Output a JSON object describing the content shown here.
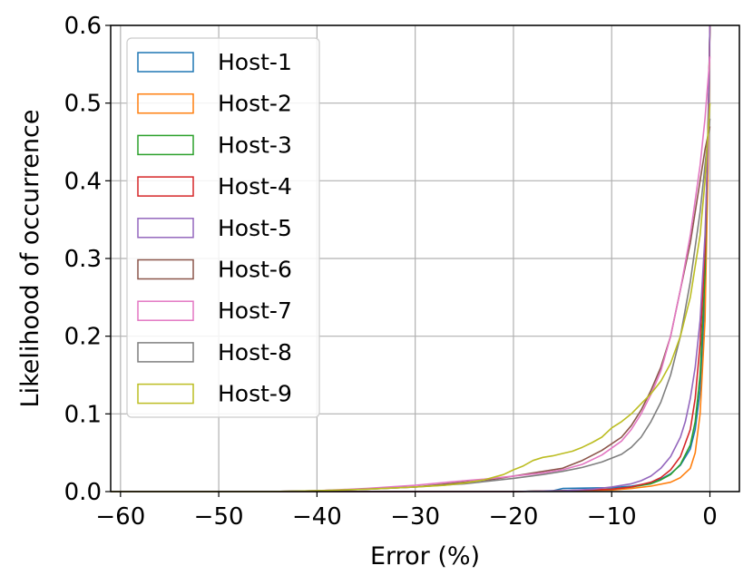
{
  "chart_data": {
    "type": "line",
    "title": "",
    "xlabel": "Error (%)",
    "ylabel": "Likelihood of occurrence",
    "xlim": [
      -61,
      3
    ],
    "ylim": [
      0,
      0.6
    ],
    "xticks": [
      -60,
      -50,
      -40,
      -30,
      -20,
      -10,
      0
    ],
    "xtick_labels": [
      "−60",
      "−50",
      "−40",
      "−30",
      "−20",
      "−10",
      "0"
    ],
    "yticks": [
      0.0,
      0.1,
      0.2,
      0.3,
      0.4,
      0.5,
      0.6
    ],
    "ytick_labels": [
      "0.0",
      "0.1",
      "0.2",
      "0.3",
      "0.4",
      "0.5",
      "0.6"
    ],
    "grid": true,
    "legend_position": "top-left",
    "series": [
      {
        "name": "Host-1",
        "color": "#1f77b4",
        "points": [
          [
            -61,
            0
          ],
          [
            -40,
            0
          ],
          [
            -30,
            0
          ],
          [
            -20,
            0
          ],
          [
            -16,
            0.001
          ],
          [
            -15,
            0.004
          ],
          [
            -10,
            0.005
          ],
          [
            -8,
            0.007
          ],
          [
            -6,
            0.011
          ],
          [
            -5,
            0.016
          ],
          [
            -4,
            0.023
          ],
          [
            -3,
            0.034
          ],
          [
            -2,
            0.055
          ],
          [
            -1.5,
            0.08
          ],
          [
            -1,
            0.13
          ],
          [
            -0.5,
            0.25
          ],
          [
            -0.2,
            0.45
          ],
          [
            0,
            0.6
          ]
        ]
      },
      {
        "name": "Host-2",
        "color": "#ff7f0e",
        "points": [
          [
            -61,
            0
          ],
          [
            -40,
            0
          ],
          [
            -30,
            0
          ],
          [
            -20,
            0
          ],
          [
            -15,
            0.001
          ],
          [
            -10,
            0.002
          ],
          [
            -8,
            0.004
          ],
          [
            -6,
            0.007
          ],
          [
            -4,
            0.012
          ],
          [
            -3,
            0.018
          ],
          [
            -2,
            0.03
          ],
          [
            -1.5,
            0.05
          ],
          [
            -1,
            0.1
          ],
          [
            -0.5,
            0.22
          ],
          [
            -0.2,
            0.42
          ],
          [
            0,
            0.6
          ]
        ]
      },
      {
        "name": "Host-3",
        "color": "#2ca02c",
        "points": [
          [
            -61,
            0
          ],
          [
            -40,
            0
          ],
          [
            -30,
            0
          ],
          [
            -20,
            0
          ],
          [
            -15,
            0.001
          ],
          [
            -10,
            0.003
          ],
          [
            -8,
            0.006
          ],
          [
            -6,
            0.01
          ],
          [
            -5,
            0.015
          ],
          [
            -4,
            0.022
          ],
          [
            -3,
            0.035
          ],
          [
            -2,
            0.06
          ],
          [
            -1.5,
            0.09
          ],
          [
            -1,
            0.15
          ],
          [
            -0.5,
            0.28
          ],
          [
            -0.2,
            0.47
          ],
          [
            0,
            0.6
          ]
        ]
      },
      {
        "name": "Host-4",
        "color": "#d62728",
        "points": [
          [
            -61,
            0
          ],
          [
            -40,
            0
          ],
          [
            -30,
            0
          ],
          [
            -20,
            0
          ],
          [
            -15,
            0.001
          ],
          [
            -10,
            0.003
          ],
          [
            -8,
            0.006
          ],
          [
            -6,
            0.012
          ],
          [
            -5,
            0.018
          ],
          [
            -4,
            0.028
          ],
          [
            -3,
            0.045
          ],
          [
            -2,
            0.08
          ],
          [
            -1.5,
            0.12
          ],
          [
            -1,
            0.19
          ],
          [
            -0.5,
            0.31
          ],
          [
            -0.2,
            0.46
          ],
          [
            0,
            0.6
          ]
        ]
      },
      {
        "name": "Host-5",
        "color": "#9467bd",
        "points": [
          [
            -61,
            0
          ],
          [
            -40,
            0
          ],
          [
            -30,
            0
          ],
          [
            -20,
            0
          ],
          [
            -15,
            0.001
          ],
          [
            -12,
            0.003
          ],
          [
            -10,
            0.006
          ],
          [
            -8,
            0.01
          ],
          [
            -7,
            0.014
          ],
          [
            -6,
            0.02
          ],
          [
            -5,
            0.03
          ],
          [
            -4,
            0.045
          ],
          [
            -3,
            0.07
          ],
          [
            -2.5,
            0.09
          ],
          [
            -2,
            0.12
          ],
          [
            -1.5,
            0.16
          ],
          [
            -1,
            0.22
          ],
          [
            -0.5,
            0.33
          ],
          [
            -0.2,
            0.45
          ],
          [
            0,
            0.6
          ]
        ]
      },
      {
        "name": "Host-6",
        "color": "#8c564b",
        "points": [
          [
            -61,
            0
          ],
          [
            -45,
            0
          ],
          [
            -40,
            0.001
          ],
          [
            -35,
            0.003
          ],
          [
            -30,
            0.006
          ],
          [
            -25,
            0.012
          ],
          [
            -22,
            0.016
          ],
          [
            -20,
            0.02
          ],
          [
            -18,
            0.024
          ],
          [
            -15,
            0.03
          ],
          [
            -13,
            0.04
          ],
          [
            -11,
            0.053
          ],
          [
            -9,
            0.07
          ],
          [
            -8,
            0.085
          ],
          [
            -7,
            0.105
          ],
          [
            -6,
            0.13
          ],
          [
            -5,
            0.16
          ],
          [
            -4,
            0.2
          ],
          [
            -3,
            0.26
          ],
          [
            -2,
            0.32
          ],
          [
            -1,
            0.4
          ],
          [
            -0.5,
            0.44
          ],
          [
            0,
            0.47
          ]
        ]
      },
      {
        "name": "Host-7",
        "color": "#e377c2",
        "points": [
          [
            -61,
            0
          ],
          [
            -45,
            0
          ],
          [
            -40,
            0.001
          ],
          [
            -35,
            0.004
          ],
          [
            -30,
            0.008
          ],
          [
            -26,
            0.013
          ],
          [
            -23,
            0.016
          ],
          [
            -20,
            0.02
          ],
          [
            -17,
            0.024
          ],
          [
            -15,
            0.028
          ],
          [
            -13,
            0.035
          ],
          [
            -11,
            0.047
          ],
          [
            -9,
            0.065
          ],
          [
            -8,
            0.08
          ],
          [
            -7,
            0.1
          ],
          [
            -6,
            0.125
          ],
          [
            -5,
            0.155
          ],
          [
            -4,
            0.2
          ],
          [
            -3,
            0.26
          ],
          [
            -2,
            0.33
          ],
          [
            -1,
            0.42
          ],
          [
            -0.5,
            0.48
          ],
          [
            0,
            0.56
          ]
        ]
      },
      {
        "name": "Host-8",
        "color": "#7f7f7f",
        "points": [
          [
            -61,
            0
          ],
          [
            -45,
            0
          ],
          [
            -40,
            0.001
          ],
          [
            -35,
            0.003
          ],
          [
            -30,
            0.006
          ],
          [
            -25,
            0.01
          ],
          [
            -20,
            0.017
          ],
          [
            -17,
            0.022
          ],
          [
            -15,
            0.026
          ],
          [
            -13,
            0.031
          ],
          [
            -11,
            0.038
          ],
          [
            -9,
            0.048
          ],
          [
            -8,
            0.057
          ],
          [
            -7,
            0.07
          ],
          [
            -6,
            0.09
          ],
          [
            -5,
            0.115
          ],
          [
            -4,
            0.15
          ],
          [
            -3,
            0.2
          ],
          [
            -2,
            0.27
          ],
          [
            -1,
            0.36
          ],
          [
            -0.5,
            0.42
          ],
          [
            0,
            0.48
          ]
        ]
      },
      {
        "name": "Host-9",
        "color": "#bcbd22",
        "points": [
          [
            -61,
            0
          ],
          [
            -45,
            0
          ],
          [
            -40,
            0.001
          ],
          [
            -35,
            0.003
          ],
          [
            -30,
            0.006
          ],
          [
            -27,
            0.008
          ],
          [
            -25,
            0.011
          ],
          [
            -23,
            0.015
          ],
          [
            -21,
            0.022
          ],
          [
            -20,
            0.028
          ],
          [
            -19,
            0.033
          ],
          [
            -18,
            0.04
          ],
          [
            -17,
            0.044
          ],
          [
            -16,
            0.046
          ],
          [
            -15,
            0.049
          ],
          [
            -14,
            0.052
          ],
          [
            -13,
            0.057
          ],
          [
            -12,
            0.063
          ],
          [
            -11,
            0.07
          ],
          [
            -10,
            0.082
          ],
          [
            -9,
            0.09
          ],
          [
            -8,
            0.1
          ],
          [
            -7,
            0.113
          ],
          [
            -6,
            0.126
          ],
          [
            -5,
            0.142
          ],
          [
            -4,
            0.165
          ],
          [
            -3,
            0.2
          ],
          [
            -2,
            0.25
          ],
          [
            -1,
            0.33
          ],
          [
            -0.5,
            0.4
          ],
          [
            0,
            0.5
          ]
        ]
      }
    ]
  }
}
